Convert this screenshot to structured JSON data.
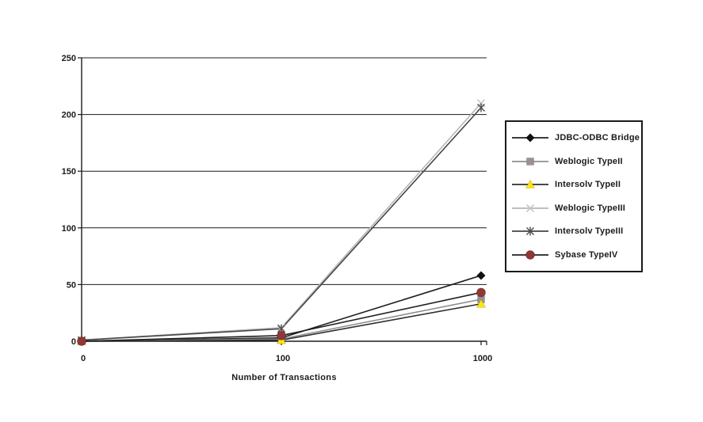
{
  "chart_data": {
    "type": "line",
    "title": "",
    "xlabel": "Number of Transactions",
    "ylabel": "",
    "categories": [
      "0",
      "100",
      "1000"
    ],
    "y_ticks": [
      0,
      50,
      100,
      150,
      200,
      250
    ],
    "ylim": [
      0,
      250
    ],
    "grid": "horizontal",
    "legend_position": "right",
    "series": [
      {
        "name": "JDBC-ODBC Bridge",
        "marker": "diamond",
        "line_color": "#1f1f1f",
        "marker_color": "#111111",
        "values": [
          0,
          3,
          58
        ]
      },
      {
        "name": "Weblogic TypeII",
        "marker": "square",
        "line_color": "#8f8f8f",
        "marker_color": "#9b9195",
        "values": [
          0,
          2,
          37
        ]
      },
      {
        "name": "Intersolv TypeII",
        "marker": "triangle",
        "line_color": "#2e2e2e",
        "marker_color": "#ffe606",
        "values": [
          0,
          1,
          33
        ]
      },
      {
        "name": "Weblogic TypeIII",
        "marker": "x",
        "line_color": "#b6b6b6",
        "marker_color": "#c7c7c7",
        "values": [
          1,
          12,
          210
        ]
      },
      {
        "name": "Intersolv TypeIII",
        "marker": "asterisk",
        "line_color": "#454545",
        "marker_color": "#4d4d4d",
        "values": [
          1,
          11,
          206
        ]
      },
      {
        "name": "Sybase TypeIV",
        "marker": "circle",
        "line_color": "#202020",
        "marker_color": "#943634",
        "values": [
          0,
          5,
          43
        ]
      }
    ]
  },
  "colors": {
    "background": "#ffffff",
    "axis": "#1c1c1c",
    "gridline": "#1c1c1c",
    "text": "#1c1c1c",
    "legend_border": "#1a1a1a"
  }
}
